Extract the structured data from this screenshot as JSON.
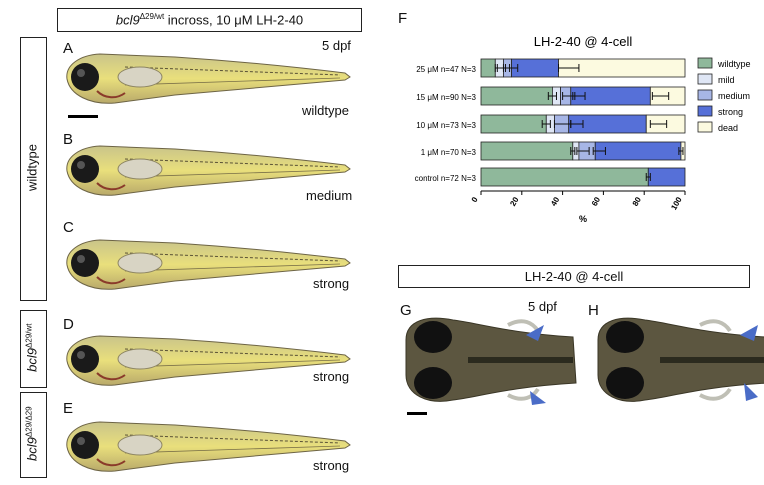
{
  "header_left": {
    "gene": "bcl9",
    "sup": "Δ29/wt",
    "rest": " incross, 10 μM LH-2-40"
  },
  "side_label_wildtype": "wildtype",
  "side_label_d": {
    "gene": "bcl9",
    "sup": "Δ29/wt"
  },
  "side_label_e": {
    "gene": "bcl9",
    "sup": "Δ29/Δ29"
  },
  "panels": [
    {
      "letter": "A",
      "caption": "wildtype",
      "dpf": "5 dpf"
    },
    {
      "letter": "B",
      "caption": "medium"
    },
    {
      "letter": "C",
      "caption": "strong"
    },
    {
      "letter": "D",
      "caption": "strong"
    },
    {
      "letter": "E",
      "caption": "strong"
    }
  ],
  "panel_f_letter": "F",
  "header_right": "LH-2-40 @ 4-cell",
  "panel_g": {
    "letter": "G",
    "dpf": "5 dpf"
  },
  "panel_h": {
    "letter": "H"
  },
  "chart_data": {
    "type": "bar",
    "orientation": "horizontal-stacked",
    "title": "LH-2-40 @ 4-cell",
    "xlabel": "%",
    "xlim": [
      0,
      100
    ],
    "xticks": [
      "0",
      "20",
      "40",
      "60",
      "80",
      "100"
    ],
    "categories": [
      "25 μM n=47 N=3",
      "15 μM n=90 N=3",
      "10 μM n=73 N=3",
      "1 μM n=70 N=3",
      "control n=72 N=3"
    ],
    "series": [
      {
        "name": "wildtype",
        "color": "#8fb89b",
        "values": [
          7,
          35,
          32,
          45,
          82
        ]
      },
      {
        "name": "mild",
        "color": "#dfe6f5",
        "values": [
          4,
          4,
          4,
          3,
          0
        ]
      },
      {
        "name": "medium",
        "color": "#a7b6e6",
        "values": [
          4,
          5,
          7,
          8,
          0
        ]
      },
      {
        "name": "strong",
        "color": "#5670d8",
        "values": [
          23,
          39,
          38,
          42,
          18
        ]
      },
      {
        "name": "dead",
        "color": "#fcfae0",
        "values": [
          62,
          17,
          19,
          2,
          0
        ]
      }
    ],
    "error_bars_cumulative": [
      [
        9,
        11,
        15,
        43
      ],
      [
        35,
        43,
        48,
        88
      ],
      [
        32,
        40,
        47,
        87
      ],
      [
        45,
        50,
        58,
        98
      ],
      [
        82
      ]
    ],
    "error_half_width": [
      [
        2,
        3,
        3,
        5
      ],
      [
        2,
        3,
        3,
        4
      ],
      [
        2,
        4,
        3,
        4
      ],
      [
        1,
        3,
        3,
        1
      ],
      [
        1
      ]
    ],
    "legend_position": "right",
    "grid": false
  }
}
